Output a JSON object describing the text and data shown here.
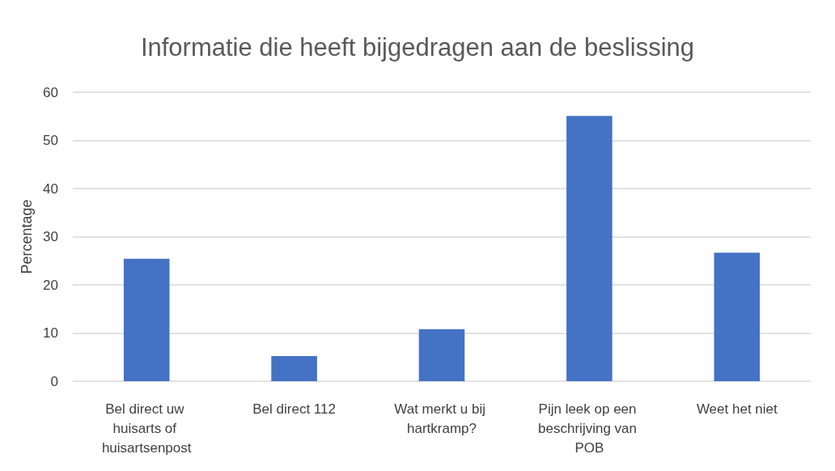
{
  "chart_data": {
    "type": "bar",
    "title": "Informatie die heeft bijgedragen aan de beslissing",
    "ylabel": "Percentage",
    "categories": [
      "Bel direct uw huisarts of huisartsenpost",
      "Bel direct 112",
      "Wat merkt u bij hartkramp?",
      "Pijn leek op een beschrijving van POB",
      "Weet het niet"
    ],
    "values": [
      25.4,
      5.2,
      10.8,
      55.1,
      26.7
    ],
    "color": "#4472c4",
    "ylim": [
      0,
      60
    ],
    "yticks": [
      0,
      10,
      20,
      30,
      40,
      50,
      60
    ],
    "grid": true
  }
}
